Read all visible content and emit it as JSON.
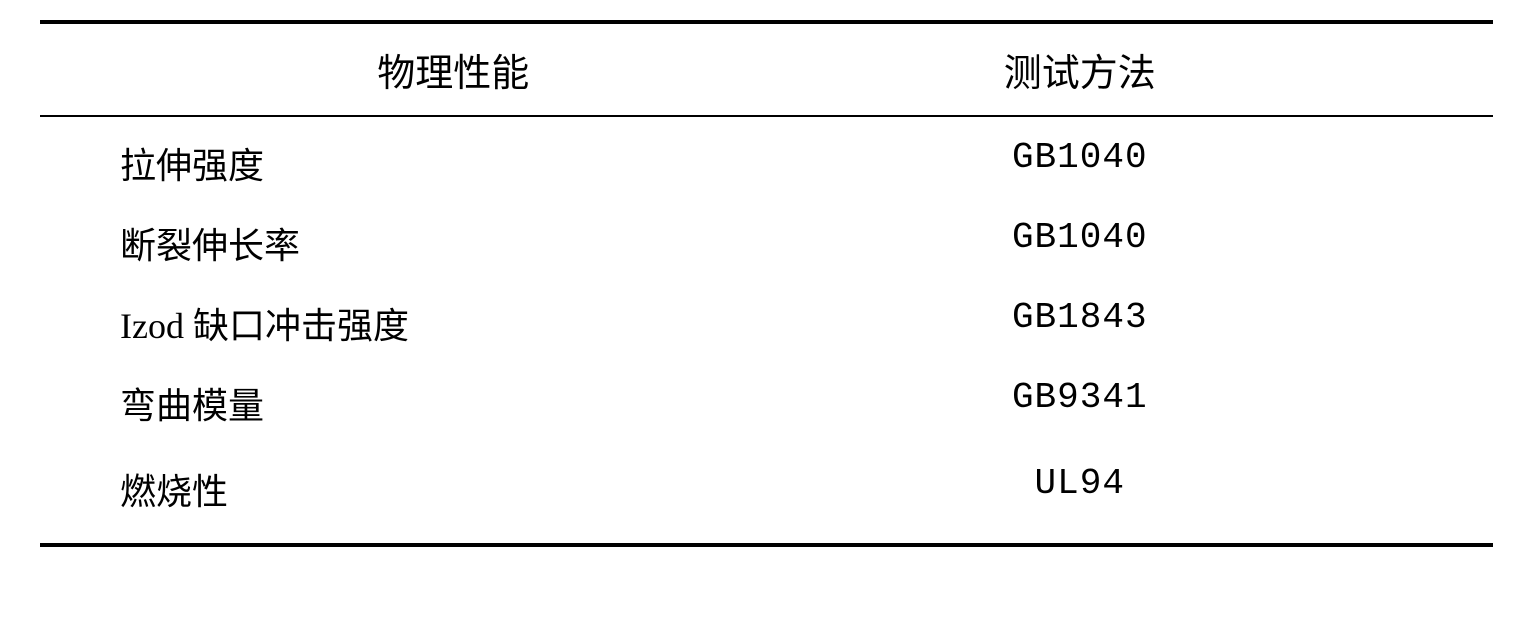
{
  "table": {
    "header": {
      "col1": "物理性能",
      "col2": "测试方法"
    },
    "rows": [
      {
        "property": "拉伸强度",
        "method": "GB1040"
      },
      {
        "property": "断裂伸长率",
        "method": "GB1040"
      },
      {
        "property": "Izod 缺口冲击强度",
        "method": "GB1843"
      },
      {
        "property": "弯曲模量",
        "method": "GB9341"
      },
      {
        "property": "燃烧性",
        "method": "UL94"
      }
    ],
    "styling": {
      "type": "table",
      "background_color": "#ffffff",
      "text_color": "#000000",
      "border_top_width": 4,
      "border_header_bottom_width": 2,
      "border_bottom_width": 4,
      "border_color": "#000000",
      "header_fontsize": 38,
      "cell_fontsize": 36,
      "col1_align": "left",
      "col2_align": "center",
      "font_family_cjk": "SimSun",
      "font_family_method": "Courier New"
    }
  }
}
